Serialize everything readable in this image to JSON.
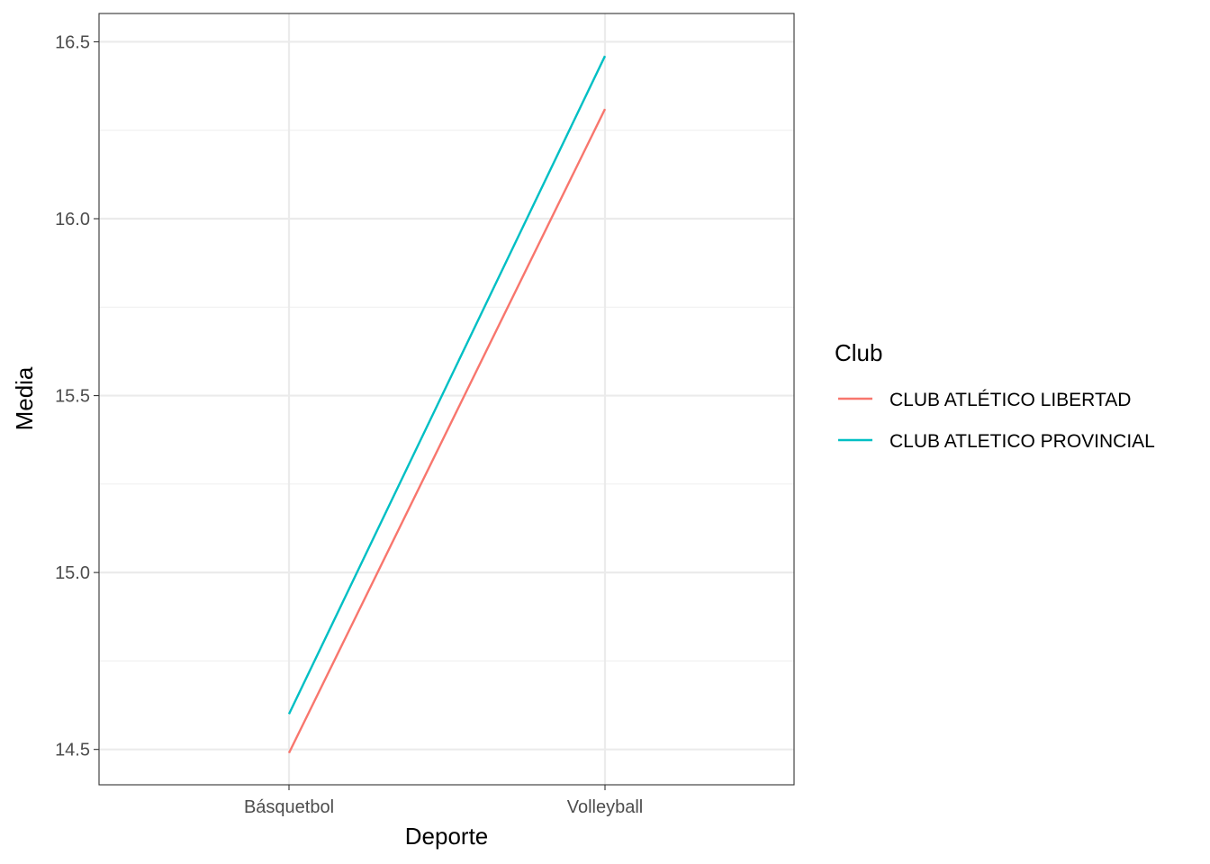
{
  "chart_data": {
    "type": "line",
    "title": "",
    "xlabel": "Deporte",
    "ylabel": "Media",
    "categories": [
      "Básquetbol",
      "Volleyball"
    ],
    "ylim": [
      14.4,
      16.58
    ],
    "yticks": [
      "14.5",
      "15.0",
      "15.5",
      "16.0",
      "16.5"
    ],
    "ytick_values": [
      14.5,
      15.0,
      15.5,
      16.0,
      16.5
    ],
    "grid": true,
    "legend": {
      "title": "Club",
      "placement": "right"
    },
    "series": [
      {
        "name": "CLUB ATLÉTICO LIBERTAD",
        "color": "#F8766D",
        "values": [
          14.49,
          16.31
        ]
      },
      {
        "name": "CLUB ATLETICO PROVINCIAL",
        "color": "#00BFC4",
        "values": [
          14.6,
          16.46
        ]
      }
    ]
  }
}
